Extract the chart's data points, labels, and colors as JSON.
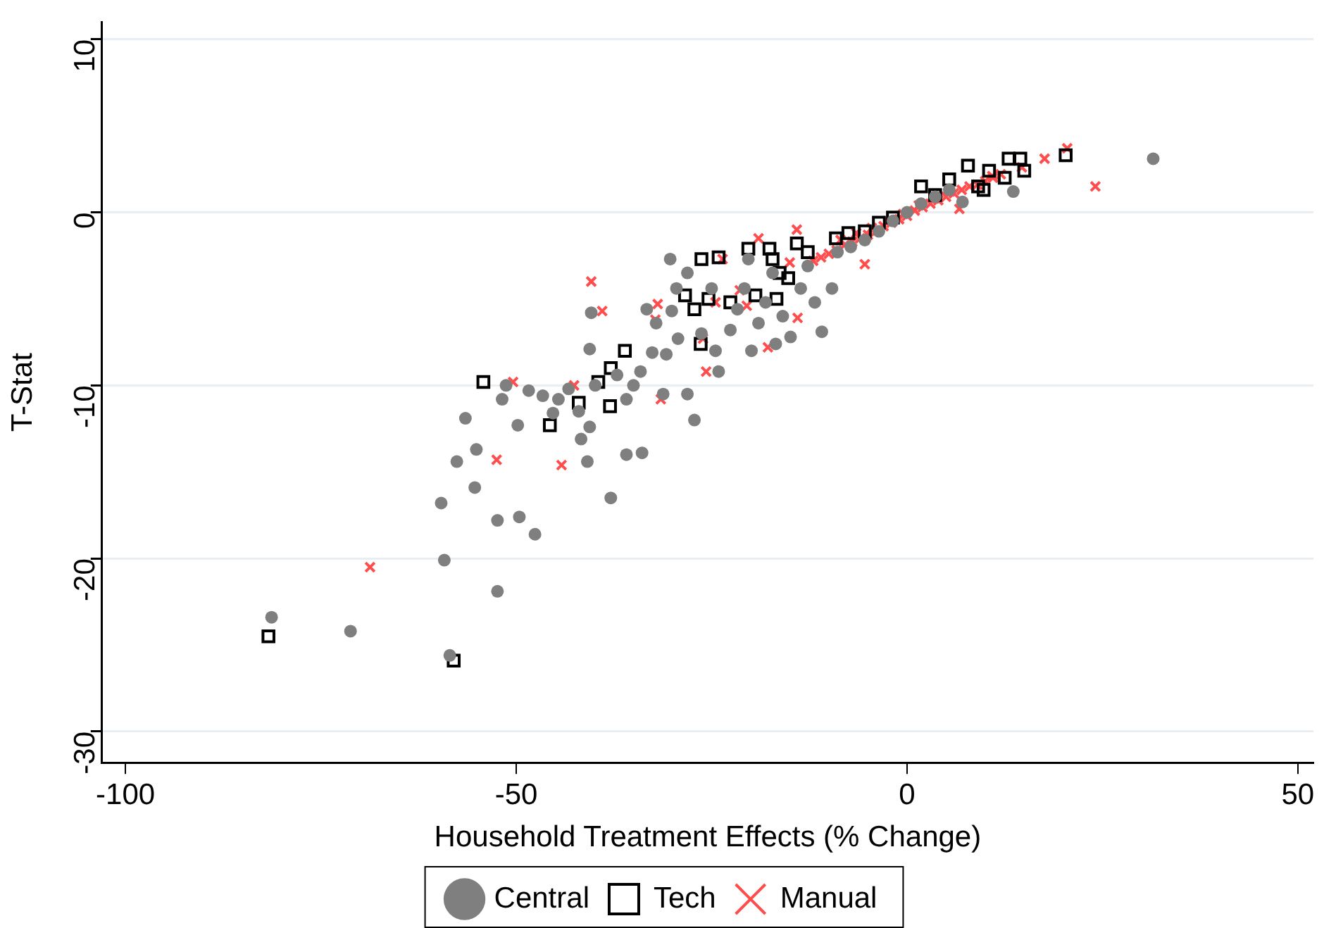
{
  "chart_data": {
    "type": "scatter",
    "xlabel": "Household Treatment Effects (% Change)",
    "ylabel": "T-Stat",
    "xlim": [
      -103,
      52
    ],
    "ylim": [
      -31.8,
      11
    ],
    "xticks": [
      -100,
      -50,
      0,
      50
    ],
    "yticks": [
      -30,
      -20,
      -10,
      0,
      10
    ],
    "grid": "y",
    "legend": "bottom",
    "series": [
      {
        "name": "Central",
        "color": "#7f7f7f",
        "marker": "circle",
        "x": [
          -81.3,
          -71.2,
          -58.5,
          -52.4,
          -59.6,
          -59.2,
          -55.3,
          -52.4,
          -49.6,
          -47.6,
          -57.6,
          -56.5,
          -55.1,
          -49.8,
          -51.3,
          -51.8,
          -48.4,
          -46.6,
          -45.3,
          -44.6,
          -43.3,
          -42,
          -41.7,
          -40.6,
          -40.9,
          -37.9,
          -35.9,
          -33.9,
          -40.4,
          -40.6,
          -39.9,
          -37.1,
          -35.9,
          -35,
          -34.1,
          -32.6,
          -33.3,
          -32.1,
          -31.2,
          -30.8,
          -30.1,
          -29.3,
          -28.1,
          -27.2,
          -29.5,
          -28.1,
          -30.3,
          -26.3,
          -25,
          -24.5,
          -24.1,
          -22.6,
          -21.7,
          -20.8,
          -20.3,
          -19.9,
          -19,
          -18.1,
          -17.2,
          -16.8,
          -15.9,
          -14.9,
          -13.6,
          -12.7,
          -11.8,
          -10.9,
          -9.6,
          -8.9,
          -7.2,
          -5.4,
          -3.6,
          -1.8,
          0,
          1.8,
          3.6,
          5.4,
          7.1,
          13.6,
          31.5
        ],
        "values": [
          -23.4,
          -24.2,
          -25.6,
          -21.9,
          -16.8,
          -20.1,
          -15.9,
          -17.8,
          -17.6,
          -18.6,
          -14.4,
          -11.9,
          -13.7,
          -12.3,
          -10,
          -10.8,
          -10.3,
          -10.6,
          -11.6,
          -10.8,
          -10.2,
          -11.5,
          -13.1,
          -12.4,
          -14.4,
          -16.5,
          -14,
          -13.9,
          -5.8,
          -7.9,
          -10,
          -9.4,
          -10.8,
          -10,
          -9.2,
          -8.1,
          -5.6,
          -6.4,
          -10.5,
          -8.2,
          -5.7,
          -7.3,
          -10.5,
          -12,
          -4.4,
          -3.5,
          -2.7,
          -7,
          -4.4,
          -8,
          -9.2,
          -6.8,
          -5.6,
          -4.4,
          -2.7,
          -8,
          -6.4,
          -5.2,
          -3.5,
          -7.6,
          -6,
          -7.2,
          -4.4,
          -3.1,
          -5.2,
          -6.9,
          -4.4,
          -2.3,
          -2,
          -1.6,
          -1.1,
          -0.5,
          0,
          0.5,
          0.9,
          1.3,
          0.6,
          1.2,
          3.1
        ]
      },
      {
        "name": "Tech",
        "color": "#000000",
        "marker": "square",
        "x": [
          -81.7,
          -58,
          -54.2,
          -45.7,
          -42,
          -39.5,
          -37.9,
          -36.1,
          -38,
          -26.4,
          -28.4,
          -27.2,
          -26.3,
          -24.1,
          -25.4,
          -22.6,
          -19.4,
          -16.7,
          -17.2,
          -20.3,
          -17.6,
          -16.3,
          -15.2,
          -14.1,
          -12.7,
          -9.1,
          -7.5,
          -5.4,
          -3.6,
          -1.8,
          1.8,
          3.6,
          5.4,
          7.8,
          9.1,
          9.8,
          12.5,
          13,
          14.5,
          15,
          20.3,
          10.5
        ],
        "values": [
          -24.5,
          -25.9,
          -9.8,
          -12.3,
          -11,
          -9.8,
          -9,
          -8,
          -11.2,
          -7.6,
          -4.8,
          -5.6,
          -2.7,
          -2.6,
          -5,
          -5.2,
          -4.8,
          -5,
          -2.7,
          -2.1,
          -2.1,
          -3.5,
          -3.8,
          -1.8,
          -2.3,
          -1.5,
          -1.2,
          -1.1,
          -0.6,
          -0.3,
          1.5,
          1,
          1.9,
          2.7,
          1.5,
          1.3,
          2,
          3.1,
          3.1,
          2.4,
          3.3,
          2.4
        ]
      },
      {
        "name": "Manual",
        "color": "#ff4d4d",
        "marker": "cross",
        "x": [
          -68.7,
          -52.5,
          -50.4,
          -44.2,
          -42.6,
          -40.4,
          -39,
          -32.2,
          -31.9,
          -31.5,
          -25.7,
          -26.1,
          -24.5,
          -23.6,
          -21.4,
          -20.5,
          -17.8,
          -19,
          -15,
          -14.1,
          -14,
          -5.4,
          -12,
          -11,
          -10,
          -9,
          -8,
          -7,
          -6,
          -5,
          -4,
          -3,
          -2,
          -1,
          0,
          1,
          2,
          3,
          4,
          5,
          6,
          7,
          8,
          9,
          10,
          11,
          12,
          -8.5,
          -6.5,
          -4.5,
          -2.5,
          -0.5,
          1.5,
          3.5,
          5.5,
          6.7,
          10.9,
          14.7,
          17.6,
          20.5,
          24.1
        ],
        "values": [
          -20.5,
          -14.3,
          -9.8,
          -14.6,
          -10,
          -4,
          -5.7,
          -6.2,
          -5.3,
          -10.8,
          -9.2,
          -7.3,
          -5.2,
          -2.7,
          -4.5,
          -5.4,
          -7.8,
          -1.5,
          -2.9,
          -1,
          -6.1,
          -3,
          -2.8,
          -2.6,
          -2.4,
          -2.2,
          -1.9,
          -1.7,
          -1.5,
          -1.3,
          -1.1,
          -0.8,
          -0.6,
          -0.4,
          -0.2,
          0.1,
          0.3,
          0.5,
          0.7,
          0.9,
          1.1,
          1.3,
          1.5,
          1.6,
          1.8,
          2,
          2.2,
          -1.6,
          -1.2,
          -0.9,
          -0.5,
          -0.1,
          0.4,
          0.8,
          1.2,
          0.2,
          2.1,
          2.6,
          3.1,
          3.7,
          1.5
        ]
      }
    ]
  }
}
